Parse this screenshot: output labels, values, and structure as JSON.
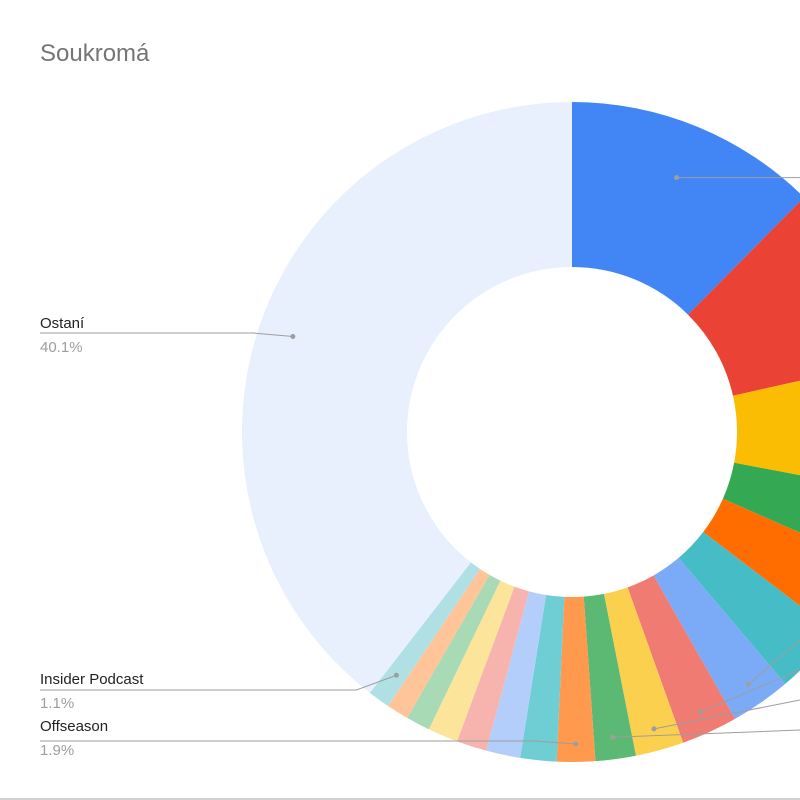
{
  "chart_data": {
    "type": "pie",
    "style": "donut",
    "title": "Soukromá",
    "slices": [
      {
        "label": "",
        "value": 12.6,
        "color": "#4285f4"
      },
      {
        "label": "",
        "value": 9.2,
        "color": "#ea4335"
      },
      {
        "label": "",
        "value": 6.6,
        "color": "#fbbc04"
      },
      {
        "label": "",
        "value": 3.7,
        "color": "#34a853"
      },
      {
        "label": "",
        "value": 3.8,
        "color": "#ff6d01"
      },
      {
        "label": "",
        "value": 3.5,
        "color": "#46bdc6"
      },
      {
        "label": "",
        "value": 3.0,
        "color": "#7baaf7"
      },
      {
        "label": "",
        "value": 2.8,
        "color": "#f07b72"
      },
      {
        "label": "",
        "value": 2.4,
        "color": "#fcd04f"
      },
      {
        "label": "",
        "value": 2.0,
        "color": "#5bb974"
      },
      {
        "label": "Offseason",
        "value": 1.9,
        "value_label": "1.9%",
        "color": "#ff994d"
      },
      {
        "label": "",
        "value": 1.8,
        "color": "#6fcdd4"
      },
      {
        "label": "",
        "value": 1.7,
        "color": "#b3cefb"
      },
      {
        "label": "",
        "value": 1.5,
        "color": "#f7b4ae"
      },
      {
        "label": "",
        "value": 1.5,
        "color": "#fde49b"
      },
      {
        "label": "",
        "value": 1.2,
        "color": "#a8dab5"
      },
      {
        "label": "",
        "value": 1.1,
        "color": "#ffc599"
      },
      {
        "label": "Insider Podcast",
        "value": 1.1,
        "value_label": "1.1%",
        "color": "#b0e0e4"
      },
      {
        "label": "Ostaní",
        "value": 40.1,
        "value_label": "40.1%",
        "color": "#e8f0fe"
      }
    ]
  }
}
